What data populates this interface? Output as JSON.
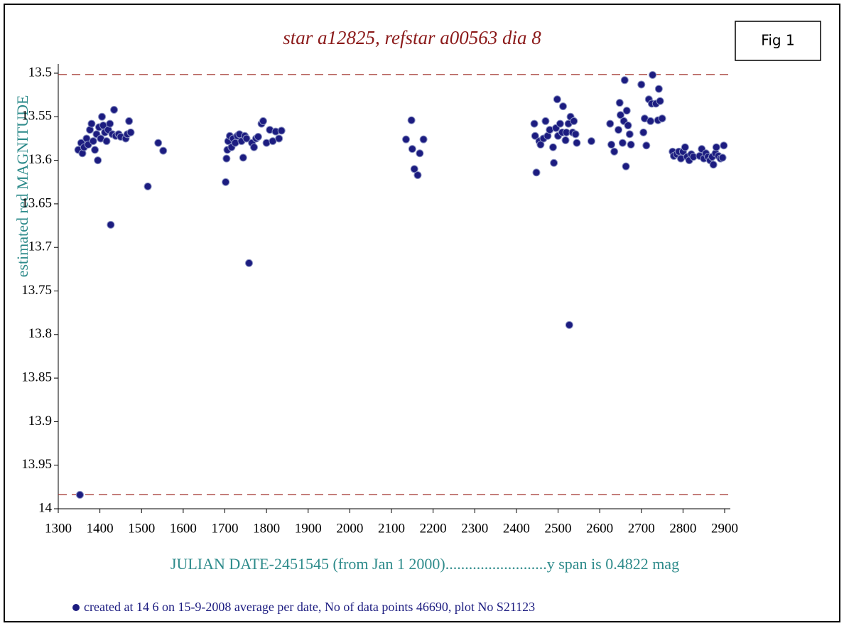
{
  "chart_data": {
    "type": "scatter",
    "title": "star a12825, refstar a00563  dia  8",
    "figure_label": "Fig 1",
    "x_label": "JULIAN DATE-2451545 (from Jan 1 2000)..........................y span is 0.4822 mag",
    "y_label": "estimated red MAGNITUDE",
    "footnote": "created at 14 6 on 15-9-2008 average per date, No of data points 46690,  plot No S21123",
    "xlim": [
      1300,
      2900
    ],
    "xticks": [
      1300,
      1400,
      1500,
      1600,
      1700,
      1800,
      1900,
      2000,
      2100,
      2200,
      2300,
      2400,
      2500,
      2600,
      2700,
      2800,
      2900
    ],
    "ylim": [
      14,
      13.5
    ],
    "yticks": [
      13.5,
      13.55,
      13.6,
      13.65,
      13.7,
      13.75,
      13.8,
      13.85,
      13.9,
      13.95,
      14
    ],
    "reference_lines": [
      13.5015,
      13.9837
    ],
    "reference_color": "#a0302a",
    "grid": false,
    "series": [
      {
        "color": "#1c1c80",
        "x": [
          1352,
          1348,
          1355,
          1358,
          1362,
          1368,
          1372,
          1376,
          1380,
          1384,
          1388,
          1392,
          1395,
          1398,
          1402,
          1405,
          1408,
          1412,
          1416,
          1420,
          1424,
          1426,
          1430,
          1434,
          1438,
          1445,
          1450,
          1462,
          1466,
          1470,
          1474,
          1515,
          1540,
          1552,
          1702,
          1704,
          1706,
          1708,
          1712,
          1716,
          1720,
          1725,
          1730,
          1735,
          1740,
          1744,
          1748,
          1752,
          1758,
          1765,
          1770,
          1775,
          1780,
          1788,
          1792,
          1800,
          1808,
          1815,
          1822,
          1830,
          1836,
          2135,
          2148,
          2150,
          2155,
          2163,
          2168,
          2177,
          2443,
          2445,
          2448,
          2455,
          2458,
          2465,
          2470,
          2475,
          2480,
          2488,
          2490,
          2495,
          2498,
          2500,
          2505,
          2510,
          2512,
          2518,
          2520,
          2525,
          2527,
          2530,
          2535,
          2538,
          2542,
          2545,
          2580,
          2625,
          2628,
          2635,
          2645,
          2648,
          2650,
          2655,
          2658,
          2660,
          2663,
          2665,
          2668,
          2672,
          2675,
          2700,
          2705,
          2708,
          2712,
          2718,
          2722,
          2725,
          2727,
          2735,
          2740,
          2742,
          2745,
          2750,
          2775,
          2778,
          2785,
          2790,
          2795,
          2800,
          2805,
          2810,
          2815,
          2820,
          2825,
          2840,
          2845,
          2850,
          2855,
          2860,
          2865,
          2870,
          2873,
          2878,
          2880,
          2885,
          2890,
          2895,
          2898
        ],
        "values": [
          13.984,
          13.588,
          13.58,
          13.592,
          13.585,
          13.575,
          13.582,
          13.565,
          13.558,
          13.578,
          13.588,
          13.57,
          13.6,
          13.562,
          13.575,
          13.55,
          13.56,
          13.568,
          13.578,
          13.565,
          13.558,
          13.674,
          13.57,
          13.542,
          13.572,
          13.57,
          13.573,
          13.575,
          13.57,
          13.555,
          13.568,
          13.63,
          13.58,
          13.589,
          13.625,
          13.598,
          13.588,
          13.578,
          13.572,
          13.585,
          13.575,
          13.58,
          13.572,
          13.57,
          13.578,
          13.597,
          13.572,
          13.575,
          13.718,
          13.58,
          13.585,
          13.575,
          13.573,
          13.558,
          13.555,
          13.58,
          13.565,
          13.578,
          13.567,
          13.575,
          13.566,
          13.576,
          13.554,
          13.587,
          13.61,
          13.617,
          13.592,
          13.576,
          13.558,
          13.572,
          13.614,
          13.578,
          13.582,
          13.575,
          13.555,
          13.572,
          13.565,
          13.585,
          13.603,
          13.563,
          13.53,
          13.572,
          13.558,
          13.568,
          13.538,
          13.577,
          13.568,
          13.558,
          13.789,
          13.55,
          13.568,
          13.555,
          13.57,
          13.58,
          13.578,
          13.558,
          13.582,
          13.59,
          13.565,
          13.534,
          13.548,
          13.58,
          13.555,
          13.508,
          13.607,
          13.543,
          13.56,
          13.57,
          13.582,
          13.513,
          13.568,
          13.552,
          13.583,
          13.53,
          13.555,
          13.535,
          13.502,
          13.535,
          13.554,
          13.518,
          13.532,
          13.552,
          13.59,
          13.595,
          13.593,
          13.59,
          13.598,
          13.59,
          13.585,
          13.596,
          13.6,
          13.593,
          13.596,
          13.595,
          13.587,
          13.598,
          13.592,
          13.596,
          13.6,
          13.596,
          13.605,
          13.592,
          13.585,
          13.595,
          13.598,
          13.597,
          13.583
        ]
      }
    ]
  }
}
